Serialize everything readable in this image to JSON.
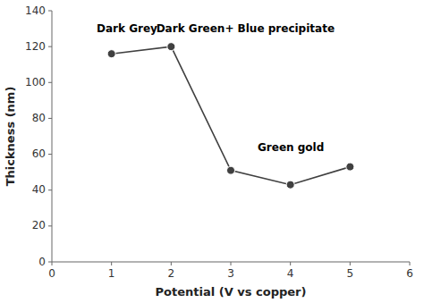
{
  "chart_data": {
    "type": "line",
    "x": [
      1,
      2,
      3,
      4,
      5
    ],
    "values": [
      116,
      120,
      51,
      43,
      53
    ],
    "xlabel": "Potential (V vs copper)",
    "ylabel": "Thickness (nm)",
    "xlim": [
      0,
      6
    ],
    "ylim": [
      0,
      140
    ],
    "xticks": [
      0,
      1,
      2,
      3,
      4,
      5,
      6
    ],
    "yticks": [
      0,
      20,
      40,
      60,
      80,
      100,
      120,
      140
    ],
    "annotations": [
      {
        "text": "Dark Grey",
        "x": 0.75,
        "y": 128
      },
      {
        "text": "Dark Green+ Blue precipitate",
        "x": 1.75,
        "y": 128
      },
      {
        "text": "Green gold",
        "x": 3.45,
        "y": 62
      }
    ],
    "color": "#404040",
    "marker": "circle",
    "grid": false
  }
}
